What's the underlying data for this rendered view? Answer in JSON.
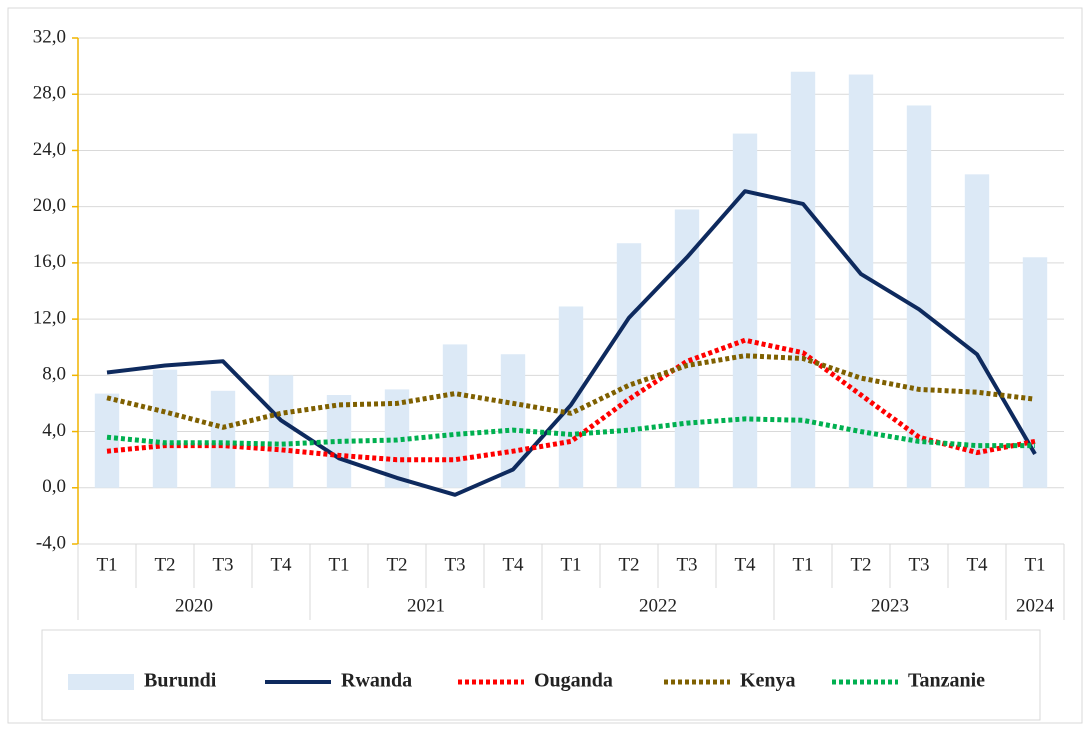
{
  "chart_data": {
    "type": "combo",
    "groups": [
      {
        "label": "2020",
        "categories": [
          "T1",
          "T2",
          "T3",
          "T4"
        ]
      },
      {
        "label": "2021",
        "categories": [
          "T1",
          "T2",
          "T3",
          "T4"
        ]
      },
      {
        "label": "2022",
        "categories": [
          "T1",
          "T2",
          "T3",
          "T4"
        ]
      },
      {
        "label": "2023",
        "categories": [
          "T1",
          "T2",
          "T3",
          "T4"
        ]
      },
      {
        "label": "2024",
        "categories": [
          "T1"
        ]
      }
    ],
    "series": [
      {
        "name": "Burundi",
        "type": "bar",
        "color": "#dce9f6",
        "values": [
          6.7,
          8.4,
          6.9,
          8.0,
          6.6,
          7.0,
          10.2,
          9.5,
          12.9,
          17.4,
          19.8,
          25.2,
          29.6,
          29.4,
          27.2,
          22.3,
          16.4
        ]
      },
      {
        "name": "Rwanda",
        "type": "line",
        "line_style": "solid",
        "color": "#0e2a5e",
        "values": [
          8.2,
          8.7,
          9.0,
          4.8,
          2.1,
          0.7,
          -0.5,
          1.3,
          5.9,
          12.1,
          16.4,
          21.1,
          20.2,
          15.2,
          12.7,
          9.5,
          2.4
        ]
      },
      {
        "name": "Ouganda",
        "type": "line",
        "line_style": "dotted",
        "color": "#ff0000",
        "values": [
          2.6,
          3.0,
          3.0,
          2.7,
          2.3,
          2.0,
          2.0,
          2.6,
          3.3,
          6.3,
          9.0,
          10.5,
          9.6,
          6.6,
          3.6,
          2.5,
          3.3
        ]
      },
      {
        "name": "Kenya",
        "type": "line",
        "line_style": "dotted",
        "color": "#7f6000",
        "values": [
          6.4,
          5.4,
          4.3,
          5.3,
          5.9,
          6.0,
          6.7,
          6.0,
          5.3,
          7.3,
          8.7,
          9.4,
          9.2,
          7.8,
          7.0,
          6.8,
          6.3
        ]
      },
      {
        "name": "Tanzanie",
        "type": "line",
        "line_style": "dotted",
        "color": "#00b050",
        "values": [
          3.6,
          3.2,
          3.2,
          3.1,
          3.3,
          3.4,
          3.8,
          4.1,
          3.8,
          4.1,
          4.6,
          4.9,
          4.8,
          4.0,
          3.3,
          3.0,
          3.0
        ]
      }
    ],
    "ylim": [
      -4,
      32
    ],
    "yticks": [
      {
        "value": -4,
        "label": "-4,0"
      },
      {
        "value": 0,
        "label": "0,0"
      },
      {
        "value": 4,
        "label": "4,0"
      },
      {
        "value": 8,
        "label": "8,0"
      },
      {
        "value": 12,
        "label": "12,0"
      },
      {
        "value": 16,
        "label": "16,0"
      },
      {
        "value": 20,
        "label": "20,0"
      },
      {
        "value": 24,
        "label": "24,0"
      },
      {
        "value": 28,
        "label": "28,0"
      },
      {
        "value": 32,
        "label": "32,0"
      }
    ],
    "grid": true,
    "legend": "bottom"
  }
}
